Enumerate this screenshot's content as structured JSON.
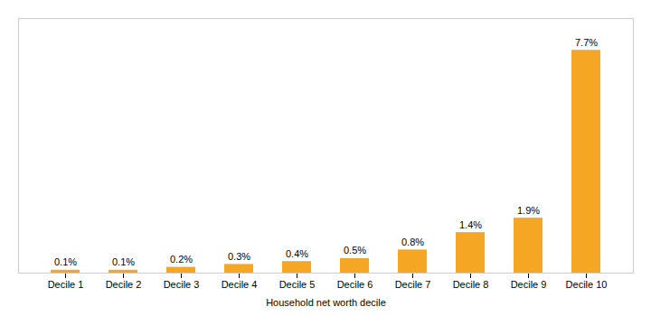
{
  "chart_data": {
    "type": "bar",
    "xlabel": "Household net worth decile",
    "categories": [
      "Decile 1",
      "Decile 2",
      "Decile 3",
      "Decile 4",
      "Decile 5",
      "Decile 6",
      "Decile 7",
      "Decile 8",
      "Decile 9",
      "Decile 10"
    ],
    "values": [
      0.1,
      0.1,
      0.2,
      0.3,
      0.4,
      0.5,
      0.8,
      1.4,
      1.9,
      7.7
    ],
    "value_labels": [
      "0.1%",
      "0.1%",
      "0.2%",
      "0.3%",
      "0.4%",
      "0.5%",
      "0.8%",
      "1.4%",
      "1.9%",
      "7.7%"
    ],
    "color": "#F5A623",
    "ylim": [
      0,
      8.8
    ],
    "data_labels": true,
    "tick_labels": "x",
    "grid": false
  }
}
